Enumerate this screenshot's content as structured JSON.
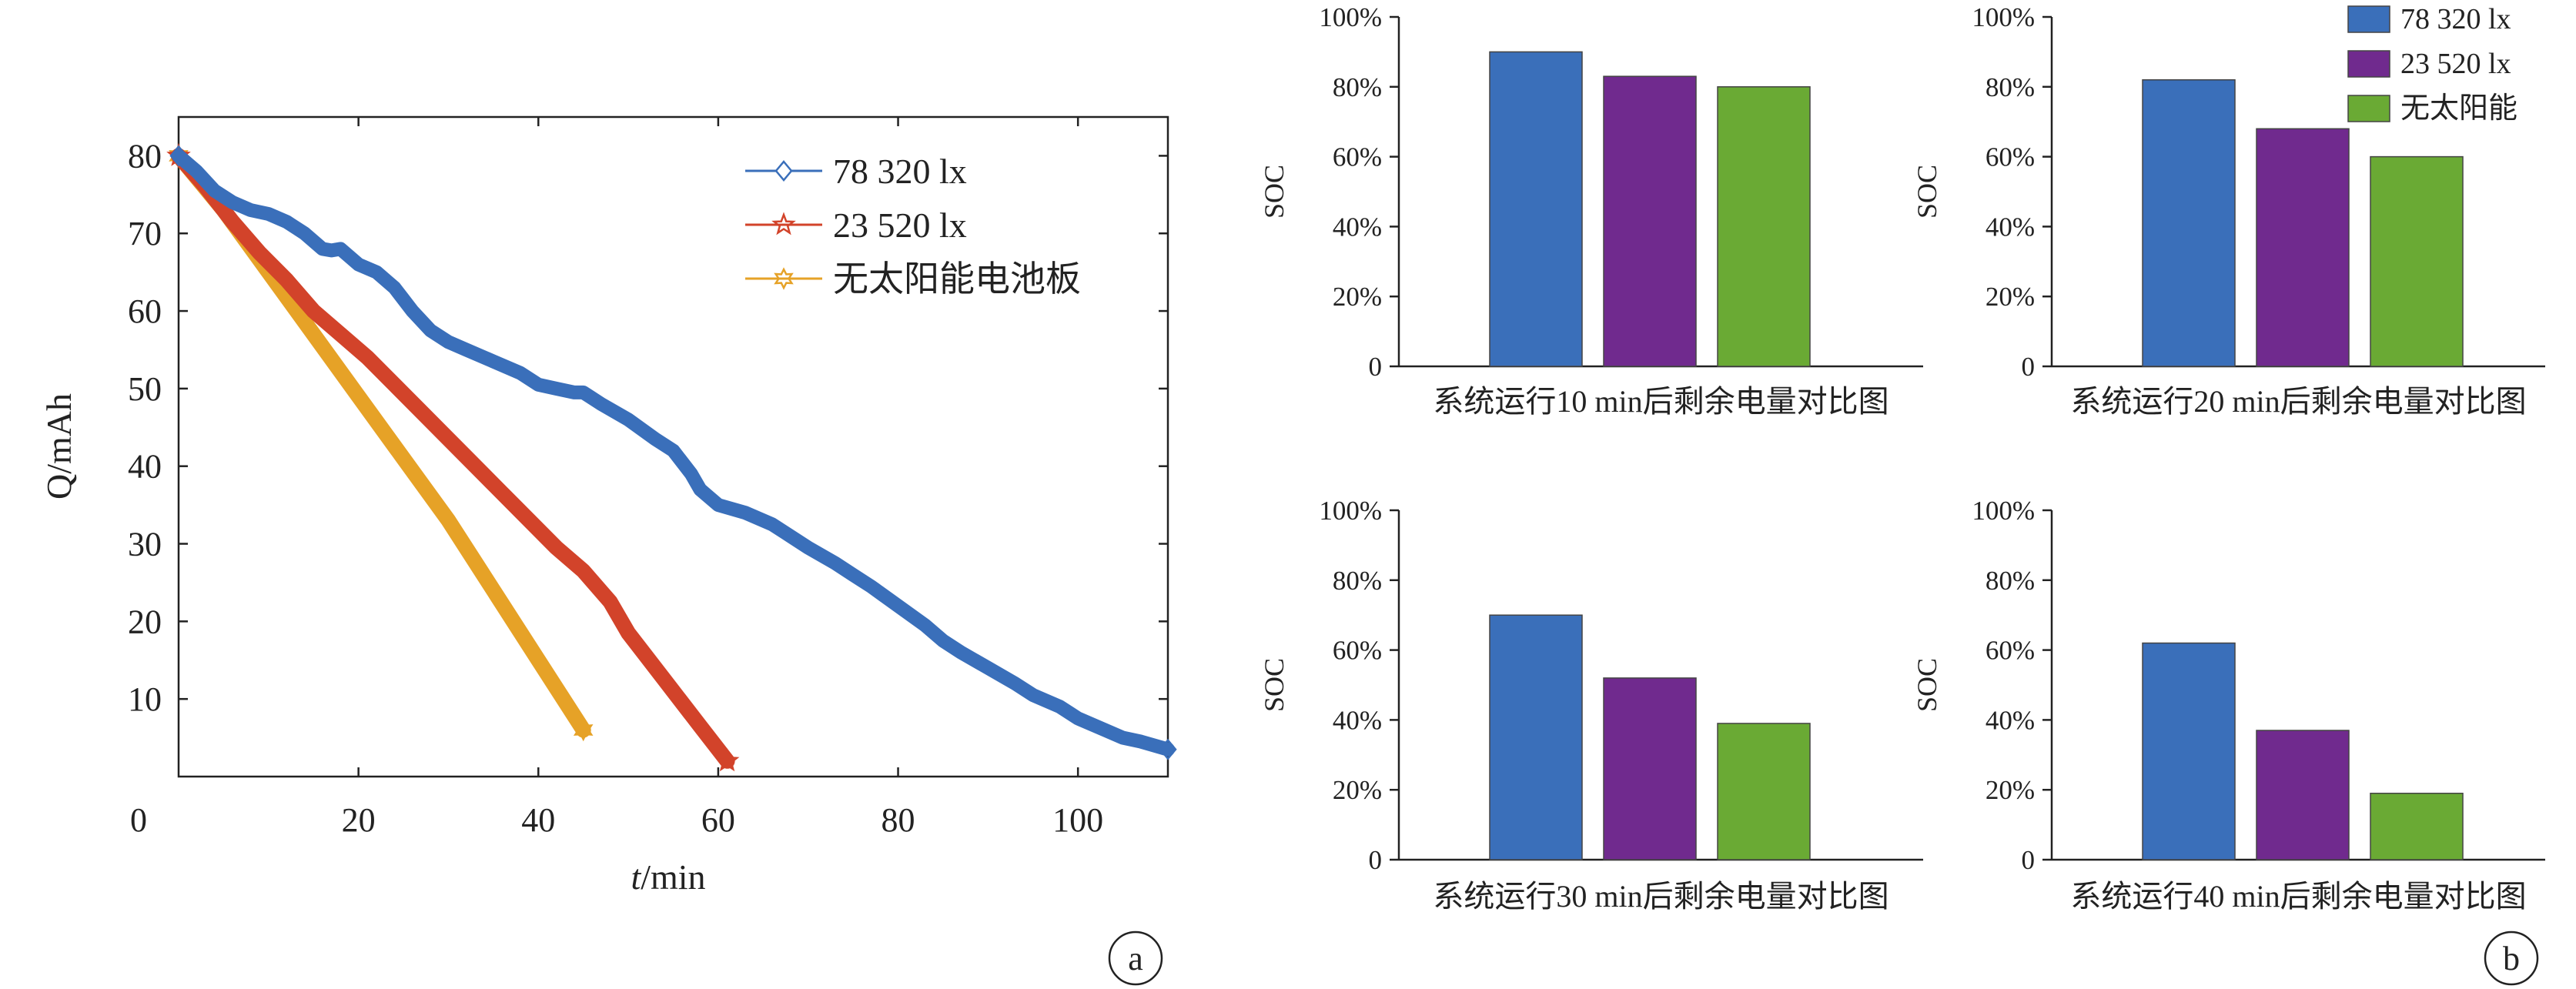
{
  "colors": {
    "blue": "#3a6fba",
    "purple": "#702a8e",
    "green": "#6aaa34",
    "red": "#d2432a",
    "orange": "#e6a227",
    "axis": "#222222"
  },
  "panel_a": {
    "ylabel": "Q/mAh",
    "xlabel_italic": "t",
    "xlabel_rest": "/min",
    "origin_label": "0",
    "badge": "a",
    "legend": [
      {
        "label": "78 320 lx",
        "marker": "diamond",
        "color": "#3a6fba"
      },
      {
        "label": "23 520 lx",
        "marker": "star",
        "color": "#d2432a"
      },
      {
        "label": "无太阳能电池板",
        "marker": "star6",
        "color": "#e6a227"
      }
    ]
  },
  "panel_b": {
    "badge": "b",
    "legend": [
      {
        "label": "78 320 lx",
        "color": "#3a6fba"
      },
      {
        "label": "23 520 lx",
        "color": "#702a8e"
      },
      {
        "label": "无太阳能",
        "color": "#6aaa34"
      }
    ]
  },
  "chart_data": [
    {
      "type": "line",
      "xlabel": "t/min",
      "ylabel": "Q/mAh",
      "xlim": [
        0,
        110
      ],
      "ylim": [
        0,
        85
      ],
      "xticks": [
        20,
        40,
        60,
        80,
        100
      ],
      "yticks": [
        10,
        20,
        30,
        40,
        50,
        60,
        70,
        80
      ],
      "legend_position": "top-right",
      "series": [
        {
          "name": "78 320 lx",
          "color": "#3a6fba",
          "x": [
            0,
            2,
            4,
            6,
            8,
            10,
            12,
            14,
            16,
            17,
            18,
            20,
            22,
            24,
            26,
            28,
            30,
            32,
            35,
            38,
            40,
            42,
            44,
            45,
            47,
            50,
            53,
            55,
            57,
            58,
            60,
            63,
            66,
            68,
            70,
            73,
            75,
            77,
            80,
            83,
            85,
            87,
            90,
            93,
            95,
            98,
            100,
            103,
            105,
            107,
            110
          ],
          "y": [
            80,
            78,
            75.5,
            74,
            73,
            72.5,
            71.5,
            70,
            68,
            67.8,
            68,
            66,
            65,
            63,
            60,
            57.5,
            56,
            55,
            53.5,
            52,
            50.5,
            50,
            49.5,
            49.5,
            48,
            46,
            43.5,
            42,
            39,
            37,
            35,
            34,
            32.5,
            31,
            29.5,
            27.5,
            26,
            24.5,
            22,
            19.5,
            17.5,
            16,
            14,
            12,
            10.5,
            9,
            7.5,
            6,
            5,
            4.5,
            3.5
          ]
        },
        {
          "name": "23 520 lx",
          "color": "#d2432a",
          "x": [
            0,
            3,
            6,
            9,
            12,
            15,
            18,
            21,
            24,
            27,
            30,
            33,
            36,
            39,
            42,
            45,
            48,
            50,
            52,
            55,
            58,
            61
          ],
          "y": [
            80,
            76,
            71.5,
            67.5,
            64,
            60,
            57,
            54,
            50.5,
            47,
            43.5,
            40,
            36.5,
            33,
            29.5,
            26.5,
            22.5,
            18.5,
            15.5,
            11,
            6.5,
            2
          ]
        },
        {
          "name": "无太阳能电池板",
          "color": "#e6a227",
          "x": [
            0,
            5,
            10,
            15,
            20,
            25,
            30,
            35,
            40,
            45
          ],
          "y": [
            80,
            73,
            65,
            57,
            49,
            41,
            33,
            24,
            15,
            6
          ]
        }
      ]
    },
    {
      "type": "bar",
      "xlabel": "系统运行10 min后剩余电量对比图",
      "ylabel": "SOC",
      "ylim": [
        0,
        100
      ],
      "yticks": [
        "0",
        "20%",
        "40%",
        "60%",
        "80%",
        "100%"
      ],
      "series": [
        {
          "name": "78 320 lx",
          "values": [
            90
          ]
        },
        {
          "name": "23 520 lx",
          "values": [
            83
          ]
        },
        {
          "name": "无太阳能",
          "values": [
            80
          ]
        }
      ]
    },
    {
      "type": "bar",
      "xlabel": "系统运行20 min后剩余电量对比图",
      "ylabel": "SOC",
      "ylim": [
        0,
        100
      ],
      "yticks": [
        "0",
        "20%",
        "40%",
        "60%",
        "80%",
        "100%"
      ],
      "series": [
        {
          "name": "78 320 lx",
          "values": [
            82
          ]
        },
        {
          "name": "23 520 lx",
          "values": [
            68
          ]
        },
        {
          "name": "无太阳能",
          "values": [
            60
          ]
        }
      ]
    },
    {
      "type": "bar",
      "xlabel": "系统运行30 min后剩余电量对比图",
      "ylabel": "SOC",
      "ylim": [
        0,
        100
      ],
      "yticks": [
        "0",
        "20%",
        "40%",
        "60%",
        "80%",
        "100%"
      ],
      "series": [
        {
          "name": "78 320 lx",
          "values": [
            70
          ]
        },
        {
          "name": "23 520 lx",
          "values": [
            52
          ]
        },
        {
          "name": "无太阳能",
          "values": [
            39
          ]
        }
      ]
    },
    {
      "type": "bar",
      "xlabel": "系统运行40 min后剩余电量对比图",
      "ylabel": "SOC",
      "ylim": [
        0,
        100
      ],
      "yticks": [
        "0",
        "20%",
        "40%",
        "60%",
        "80%",
        "100%"
      ],
      "series": [
        {
          "name": "78 320 lx",
          "values": [
            62
          ]
        },
        {
          "name": "23 520 lx",
          "values": [
            37
          ]
        },
        {
          "name": "无太阳能",
          "values": [
            19
          ]
        }
      ]
    }
  ]
}
